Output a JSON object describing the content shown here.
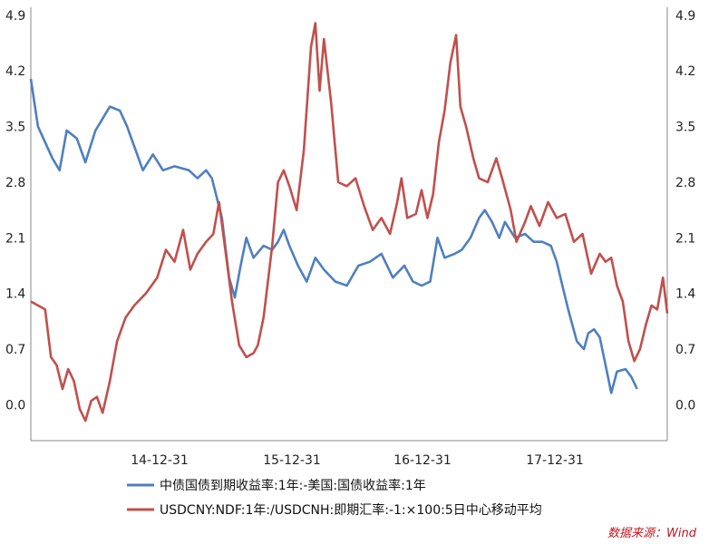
{
  "chart_data": {
    "type": "line",
    "title": "",
    "xlabel": "",
    "ylabel": "",
    "x_ticks": [
      "14-12-31",
      "15-12-31",
      "16-12-31",
      "17-12-31"
    ],
    "y_ticks": [
      0.0,
      0.7,
      1.4,
      2.1,
      2.8,
      3.5,
      4.2,
      4.9
    ],
    "y_tick_labels": [
      "0.0",
      "0.7",
      "1.4",
      "2.1",
      "2.8",
      "3.5",
      "4.2",
      "4.9"
    ],
    "ylim": [
      -0.45,
      5.0
    ],
    "grid": false,
    "legend_position": "bottom",
    "series": [
      {
        "name": "中债国债到期收益率:1年:-美国:国债收益率:1年",
        "color": "#4f7fbf",
        "points": [
          [
            0,
            4.1
          ],
          [
            5,
            3.5
          ],
          [
            15,
            3.1
          ],
          [
            20,
            2.95
          ],
          [
            25,
            3.45
          ],
          [
            32,
            3.35
          ],
          [
            38,
            3.05
          ],
          [
            45,
            3.45
          ],
          [
            50,
            3.6
          ],
          [
            55,
            3.75
          ],
          [
            62,
            3.7
          ],
          [
            67,
            3.5
          ],
          [
            72,
            3.25
          ],
          [
            78,
            2.95
          ],
          [
            85,
            3.15
          ],
          [
            92,
            2.95
          ],
          [
            100,
            3.0
          ],
          [
            110,
            2.95
          ],
          [
            116,
            2.85
          ],
          [
            122,
            2.95
          ],
          [
            126,
            2.85
          ],
          [
            133,
            2.35
          ],
          [
            138,
            1.6
          ],
          [
            142,
            1.35
          ],
          [
            146,
            1.75
          ],
          [
            150,
            2.1
          ],
          [
            155,
            1.85
          ],
          [
            162,
            2.0
          ],
          [
            168,
            1.95
          ],
          [
            172,
            2.05
          ],
          [
            176,
            2.2
          ],
          [
            180,
            2.0
          ],
          [
            186,
            1.75
          ],
          [
            192,
            1.55
          ],
          [
            198,
            1.85
          ],
          [
            204,
            1.7
          ],
          [
            212,
            1.55
          ],
          [
            220,
            1.5
          ],
          [
            228,
            1.75
          ],
          [
            236,
            1.8
          ],
          [
            244,
            1.9
          ],
          [
            252,
            1.6
          ],
          [
            260,
            1.75
          ],
          [
            266,
            1.55
          ],
          [
            272,
            1.5
          ],
          [
            278,
            1.55
          ],
          [
            283,
            2.1
          ],
          [
            288,
            1.85
          ],
          [
            295,
            1.9
          ],
          [
            300,
            1.95
          ],
          [
            306,
            2.1
          ],
          [
            312,
            2.35
          ],
          [
            316,
            2.45
          ],
          [
            321,
            2.3
          ],
          [
            326,
            2.1
          ],
          [
            330,
            2.3
          ],
          [
            337,
            2.1
          ],
          [
            344,
            2.15
          ],
          [
            350,
            2.05
          ],
          [
            356,
            2.05
          ],
          [
            362,
            2.0
          ],
          [
            366,
            1.8
          ],
          [
            370,
            1.5
          ],
          [
            374,
            1.2
          ],
          [
            380,
            0.8
          ],
          [
            385,
            0.7
          ],
          [
            388,
            0.9
          ],
          [
            392,
            0.95
          ],
          [
            396,
            0.85
          ],
          [
            400,
            0.5
          ],
          [
            404,
            0.15
          ],
          [
            408,
            0.42
          ],
          [
            414,
            0.45
          ],
          [
            418,
            0.35
          ],
          [
            422,
            0.2
          ]
        ]
      },
      {
        "name": "USDCNY:NDF:1年:/USDCNH:即期汇率:-1:×100:5日中心移动平均",
        "color": "#c0504d",
        "points": [
          [
            0,
            1.3
          ],
          [
            5,
            1.25
          ],
          [
            10,
            1.2
          ],
          [
            14,
            0.6
          ],
          [
            18,
            0.5
          ],
          [
            22,
            0.2
          ],
          [
            26,
            0.45
          ],
          [
            30,
            0.3
          ],
          [
            34,
            -0.05
          ],
          [
            38,
            -0.2
          ],
          [
            42,
            0.05
          ],
          [
            46,
            0.1
          ],
          [
            50,
            -0.1
          ],
          [
            55,
            0.3
          ],
          [
            60,
            0.8
          ],
          [
            66,
            1.1
          ],
          [
            72,
            1.25
          ],
          [
            80,
            1.4
          ],
          [
            88,
            1.6
          ],
          [
            94,
            1.95
          ],
          [
            100,
            1.8
          ],
          [
            106,
            2.2
          ],
          [
            111,
            1.7
          ],
          [
            116,
            1.9
          ],
          [
            122,
            2.05
          ],
          [
            127,
            2.15
          ],
          [
            131,
            2.55
          ],
          [
            135,
            2.0
          ],
          [
            140,
            1.3
          ],
          [
            145,
            0.75
          ],
          [
            150,
            0.6
          ],
          [
            155,
            0.65
          ],
          [
            158,
            0.75
          ],
          [
            162,
            1.1
          ],
          [
            165,
            1.55
          ],
          [
            168,
            2.0
          ],
          [
            172,
            2.8
          ],
          [
            176,
            2.95
          ],
          [
            180,
            2.75
          ],
          [
            185,
            2.45
          ],
          [
            190,
            3.2
          ],
          [
            195,
            4.5
          ],
          [
            198,
            4.8
          ],
          [
            201,
            3.95
          ],
          [
            204,
            4.6
          ],
          [
            209,
            3.8
          ],
          [
            214,
            2.8
          ],
          [
            220,
            2.75
          ],
          [
            226,
            2.85
          ],
          [
            232,
            2.5
          ],
          [
            238,
            2.2
          ],
          [
            244,
            2.35
          ],
          [
            250,
            2.15
          ],
          [
            255,
            2.55
          ],
          [
            258,
            2.85
          ],
          [
            262,
            2.35
          ],
          [
            268,
            2.4
          ],
          [
            272,
            2.7
          ],
          [
            276,
            2.35
          ],
          [
            280,
            2.65
          ],
          [
            284,
            3.3
          ],
          [
            288,
            3.7
          ],
          [
            292,
            4.3
          ],
          [
            296,
            4.65
          ],
          [
            299,
            3.75
          ],
          [
            303,
            3.5
          ],
          [
            308,
            3.1
          ],
          [
            312,
            2.85
          ],
          [
            318,
            2.8
          ],
          [
            324,
            3.1
          ],
          [
            328,
            2.85
          ],
          [
            334,
            2.45
          ],
          [
            338,
            2.05
          ],
          [
            344,
            2.3
          ],
          [
            348,
            2.5
          ],
          [
            354,
            2.25
          ],
          [
            360,
            2.55
          ],
          [
            366,
            2.35
          ],
          [
            372,
            2.4
          ],
          [
            378,
            2.05
          ],
          [
            384,
            2.15
          ],
          [
            390,
            1.65
          ],
          [
            396,
            1.9
          ],
          [
            400,
            1.8
          ],
          [
            404,
            1.85
          ],
          [
            408,
            1.5
          ],
          [
            412,
            1.3
          ],
          [
            416,
            0.8
          ],
          [
            420,
            0.55
          ],
          [
            424,
            0.7
          ],
          [
            428,
            1.0
          ],
          [
            432,
            1.25
          ],
          [
            436,
            1.2
          ],
          [
            440,
            1.6
          ],
          [
            443,
            1.15
          ]
        ]
      }
    ]
  },
  "source": "数据来源：Wind",
  "colors": {
    "axis": "#888888",
    "text": "#222222",
    "source": "#c0141c"
  }
}
